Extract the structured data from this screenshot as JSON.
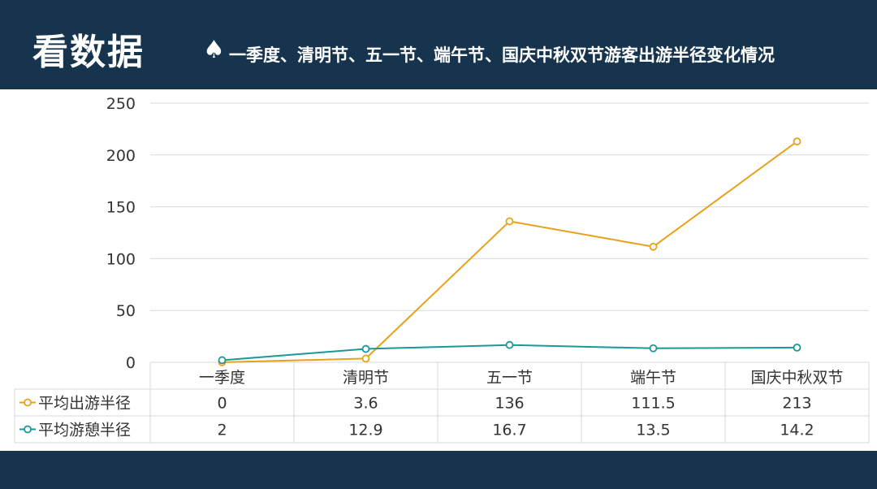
{
  "header": {
    "title": "看数据",
    "subtitle": "一季度、清明节、五一节、端午节、国庆中秋双节游客出游半径变化情况",
    "icon": "spade-icon"
  },
  "colors": {
    "header_bg": "#17344f",
    "series_travel": "#e8a21a",
    "series_rest": "#1a9898",
    "grid": "#d9d9d9"
  },
  "chart_data": {
    "type": "line",
    "categories": [
      "一季度",
      "清明节",
      "五一节",
      "端午节",
      "国庆中秋双节"
    ],
    "ylim": [
      0,
      250
    ],
    "yticks": [
      "0",
      "50",
      "100",
      "150",
      "200",
      "250"
    ],
    "grid": true,
    "legend": "data-table",
    "series": [
      {
        "name": "平均出游半径",
        "values": [
          0,
          3.6,
          136,
          111.5,
          213
        ],
        "labels": [
          "0",
          "3.6",
          "136",
          "111.5",
          "213"
        ],
        "color": "#e8a21a"
      },
      {
        "name": "平均游憩半径",
        "values": [
          2,
          12.9,
          16.7,
          13.5,
          14.2
        ],
        "labels": [
          "2",
          "12.9",
          "16.7",
          "13.5",
          "14.2"
        ],
        "color": "#1a9898"
      }
    ]
  }
}
